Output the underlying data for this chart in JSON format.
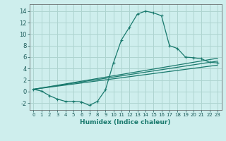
{
  "xlabel": "Humidex (Indice chaleur)",
  "background_color": "#ceeeed",
  "grid_color": "#aed4d0",
  "line_color": "#1a7a6e",
  "xlim": [
    -0.5,
    23.5
  ],
  "ylim": [
    -3.2,
    15.2
  ],
  "yticks": [
    -2,
    0,
    2,
    4,
    6,
    8,
    10,
    12,
    14
  ],
  "xticks": [
    0,
    1,
    2,
    3,
    4,
    5,
    6,
    7,
    8,
    9,
    10,
    11,
    12,
    13,
    14,
    15,
    16,
    17,
    18,
    19,
    20,
    21,
    22,
    23
  ],
  "curve1_x": [
    0,
    1,
    2,
    3,
    4,
    5,
    6,
    7,
    8,
    9,
    10,
    11,
    12,
    13,
    14,
    15,
    16,
    17,
    18,
    19,
    20,
    21,
    22,
    23
  ],
  "curve1_y": [
    0.4,
    0.1,
    -0.7,
    -1.3,
    -1.7,
    -1.7,
    -1.8,
    -2.4,
    -1.7,
    0.3,
    5.0,
    9.0,
    11.2,
    13.5,
    14.0,
    13.7,
    13.2,
    8.0,
    7.5,
    6.0,
    5.9,
    5.7,
    5.1,
    5.0
  ],
  "curve2_x": [
    0,
    23
  ],
  "curve2_y": [
    0.4,
    5.8
  ],
  "curve3_x": [
    0,
    23
  ],
  "curve3_y": [
    0.4,
    5.3
  ],
  "curve4_x": [
    0,
    23
  ],
  "curve4_y": [
    0.4,
    4.6
  ]
}
